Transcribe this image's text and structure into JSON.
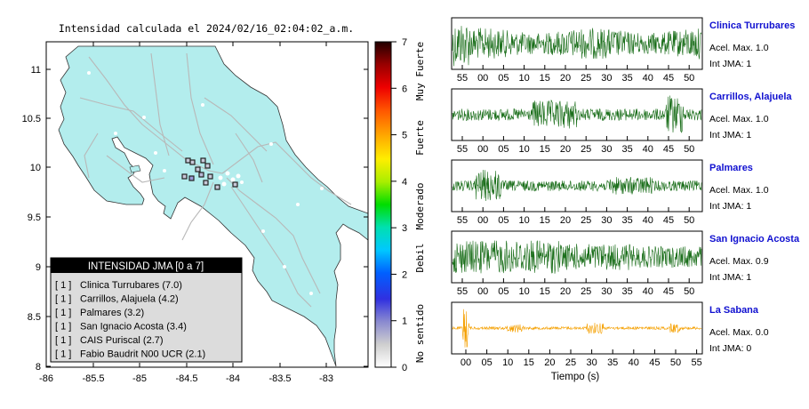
{
  "map": {
    "title": "Intensidad calculada el 2024/02/16_02:04:02_a.m.",
    "y_ticks": [
      "11",
      "10.5",
      "10",
      "9.5",
      "9",
      "8.5",
      "8"
    ],
    "x_ticks": [
      "-86",
      "-85.5",
      "-85",
      "-84.5",
      "-84",
      "-83.5",
      "-83"
    ],
    "colors": {
      "sea": "#ffffff",
      "land": "#b3eded",
      "roads": "#b8b8b8",
      "station_border": "#222222"
    }
  },
  "legend": {
    "title": "INTENSIDAD JMA [0 a 7]",
    "entries": [
      {
        "intensity": "[ 1 ]",
        "name": "Clinica Turrubares (7.0)"
      },
      {
        "intensity": "[ 1 ]",
        "name": "Carrillos, Alajuela (4.2)"
      },
      {
        "intensity": "[ 1 ]",
        "name": "Palmares (3.2)"
      },
      {
        "intensity": "[ 1 ]",
        "name": "San Ignacio Acosta (3.4)"
      },
      {
        "intensity": "[ 1 ]",
        "name": "CAIS Puriscal (2.7)"
      },
      {
        "intensity": "[ 1 ]",
        "name": "Fabio Baudrit N00 UCR (2.1)"
      }
    ]
  },
  "colorbar": {
    "ticks": [
      "7",
      "6",
      "5",
      "4",
      "3",
      "2",
      "1",
      "0"
    ],
    "categories": [
      "Muy Fuerte",
      "Fuerte",
      "Moderado",
      "Debil",
      "No sentido"
    ]
  },
  "waveforms": {
    "xlabel": "Tiempo (s)",
    "panels": [
      {
        "station": "Clinica Turrubares",
        "acel": "Acel. Max. 1.0",
        "jma": "Int JMA: 1",
        "color": "#1a6e1a",
        "ticks": [
          "55",
          "00",
          "05",
          "10",
          "15",
          "20",
          "25",
          "30",
          "35",
          "40",
          "45",
          "50"
        ]
      },
      {
        "station": "Carrillos, Alajuela",
        "acel": "Acel. Max. 1.0",
        "jma": "Int JMA: 1",
        "color": "#1a6e1a",
        "ticks": [
          "55",
          "00",
          "05",
          "10",
          "15",
          "20",
          "25",
          "30",
          "35",
          "40",
          "45",
          "50"
        ]
      },
      {
        "station": "Palmares",
        "acel": "Acel. Max. 1.0",
        "jma": "Int JMA: 1",
        "color": "#1a6e1a",
        "ticks": [
          "55",
          "00",
          "05",
          "10",
          "15",
          "20",
          "25",
          "30",
          "35",
          "40",
          "45",
          "50"
        ]
      },
      {
        "station": "San Ignacio Acosta",
        "acel": "Acel. Max. 0.9",
        "jma": "Int JMA: 1",
        "color": "#1a6e1a",
        "ticks": [
          "55",
          "00",
          "05",
          "10",
          "15",
          "20",
          "25",
          "30",
          "35",
          "40",
          "45",
          "50"
        ]
      },
      {
        "station": "La Sabana",
        "acel": "Acel. Max. 0.0",
        "jma": "Int JMA: 0",
        "color": "#f5a000",
        "ticks": [
          "00",
          "05",
          "10",
          "15",
          "20",
          "25",
          "30",
          "35",
          "40",
          "45",
          "50",
          "55"
        ]
      }
    ]
  }
}
